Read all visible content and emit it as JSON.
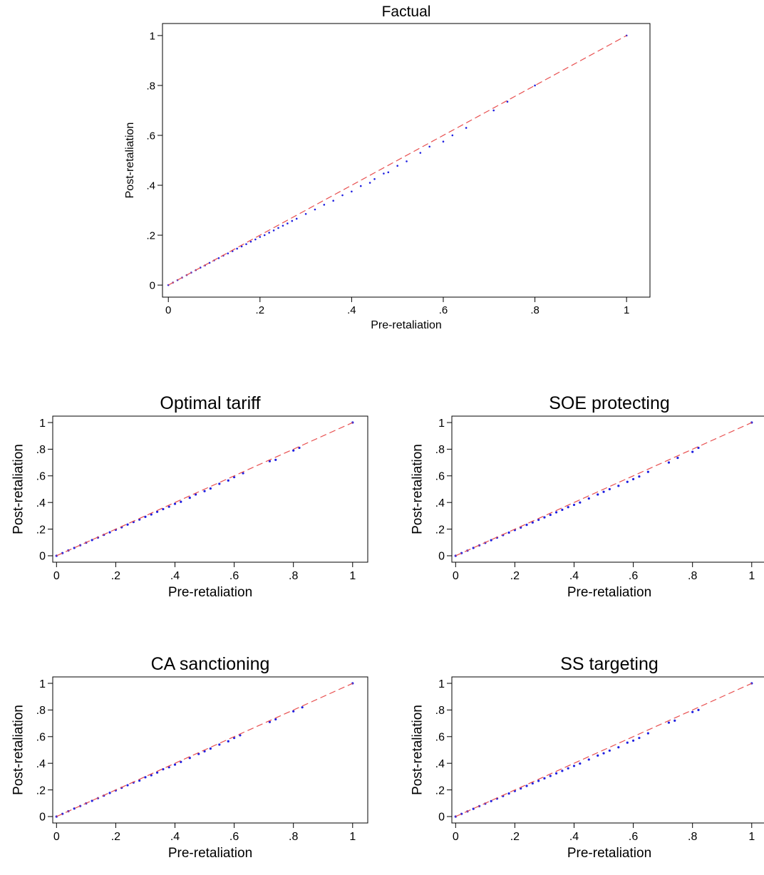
{
  "colors": {
    "points": "#1f1fe0",
    "reference_line": "#e85050",
    "axis": "#000000",
    "background": "#ffffff"
  },
  "chart_data": [
    {
      "type": "scatter",
      "title": "Factual",
      "xlabel": "Pre-retaliation",
      "ylabel": "Post-retaliation",
      "xlim": [
        0,
        1
      ],
      "ylim": [
        0,
        1
      ],
      "xticks": [
        "0",
        ".2",
        ".4",
        ".6",
        ".8",
        "1"
      ],
      "yticks": [
        "0",
        ".2",
        ".4",
        ".6",
        ".8",
        "1"
      ],
      "reference_line": {
        "x": [
          0,
          1
        ],
        "y": [
          0,
          1
        ],
        "style": "dashed"
      },
      "grid": false,
      "points": [
        [
          0,
          0
        ],
        [
          0.01,
          0.01
        ],
        [
          0.02,
          0.02
        ],
        [
          0.03,
          0.03
        ],
        [
          0.04,
          0.04
        ],
        [
          0.05,
          0.05
        ],
        [
          0.06,
          0.06
        ],
        [
          0.07,
          0.07
        ],
        [
          0.08,
          0.079
        ],
        [
          0.09,
          0.089
        ],
        [
          0.1,
          0.099
        ],
        [
          0.11,
          0.108
        ],
        [
          0.12,
          0.118
        ],
        [
          0.13,
          0.127
        ],
        [
          0.14,
          0.136
        ],
        [
          0.15,
          0.146
        ],
        [
          0.16,
          0.155
        ],
        [
          0.17,
          0.164
        ],
        [
          0.18,
          0.174
        ],
        [
          0.19,
          0.183
        ],
        [
          0.2,
          0.193
        ],
        [
          0.21,
          0.2
        ],
        [
          0.22,
          0.21
        ],
        [
          0.23,
          0.219
        ],
        [
          0.24,
          0.229
        ],
        [
          0.25,
          0.238
        ],
        [
          0.26,
          0.247
        ],
        [
          0.27,
          0.257
        ],
        [
          0.28,
          0.266
        ],
        [
          0.3,
          0.285
        ],
        [
          0.32,
          0.303
        ],
        [
          0.34,
          0.322
        ],
        [
          0.36,
          0.338
        ],
        [
          0.38,
          0.36
        ],
        [
          0.4,
          0.375
        ],
        [
          0.42,
          0.397
        ],
        [
          0.44,
          0.41
        ],
        [
          0.45,
          0.425
        ],
        [
          0.47,
          0.447
        ],
        [
          0.48,
          0.452
        ],
        [
          0.5,
          0.478
        ],
        [
          0.52,
          0.496
        ],
        [
          0.55,
          0.53
        ],
        [
          0.57,
          0.555
        ],
        [
          0.6,
          0.575
        ],
        [
          0.62,
          0.6
        ],
        [
          0.65,
          0.63
        ],
        [
          0.71,
          0.7
        ],
        [
          0.74,
          0.735
        ],
        [
          0.8,
          0.8
        ],
        [
          1,
          1
        ]
      ]
    },
    {
      "type": "scatter",
      "title": "Optimal tariff",
      "xlabel": "Pre-retaliation",
      "ylabel": "Post-retaliation",
      "xlim": [
        0,
        1
      ],
      "ylim": [
        0,
        1
      ],
      "xticks": [
        "0",
        ".2",
        ".4",
        ".6",
        ".8",
        "1"
      ],
      "yticks": [
        "0",
        ".2",
        ".4",
        ".6",
        ".8",
        "1"
      ],
      "reference_line": {
        "x": [
          0,
          1
        ],
        "y": [
          0,
          1
        ],
        "style": "dashed"
      },
      "grid": false,
      "points": [
        [
          0,
          0
        ],
        [
          0.02,
          0.02
        ],
        [
          0.04,
          0.04
        ],
        [
          0.06,
          0.059
        ],
        [
          0.08,
          0.079
        ],
        [
          0.1,
          0.098
        ],
        [
          0.12,
          0.118
        ],
        [
          0.14,
          0.137
        ],
        [
          0.16,
          0.157
        ],
        [
          0.18,
          0.176
        ],
        [
          0.2,
          0.195
        ],
        [
          0.22,
          0.214
        ],
        [
          0.24,
          0.234
        ],
        [
          0.26,
          0.253
        ],
        [
          0.28,
          0.272
        ],
        [
          0.3,
          0.292
        ],
        [
          0.32,
          0.31
        ],
        [
          0.34,
          0.33
        ],
        [
          0.36,
          0.35
        ],
        [
          0.38,
          0.368
        ],
        [
          0.4,
          0.39
        ],
        [
          0.42,
          0.405
        ],
        [
          0.45,
          0.435
        ],
        [
          0.47,
          0.46
        ],
        [
          0.5,
          0.485
        ],
        [
          0.52,
          0.505
        ],
        [
          0.55,
          0.54
        ],
        [
          0.58,
          0.565
        ],
        [
          0.6,
          0.59
        ],
        [
          0.63,
          0.62
        ],
        [
          0.72,
          0.71
        ],
        [
          0.74,
          0.72
        ],
        [
          0.8,
          0.79
        ],
        [
          0.82,
          0.81
        ],
        [
          1,
          1
        ]
      ]
    },
    {
      "type": "scatter",
      "title": "SOE protecting",
      "xlabel": "Pre-retaliation",
      "ylabel": "Post-retaliation",
      "xlim": [
        0,
        1
      ],
      "ylim": [
        0,
        1
      ],
      "xticks": [
        "0",
        ".2",
        ".4",
        ".6",
        ".8",
        "1"
      ],
      "yticks": [
        "0",
        ".2",
        ".4",
        ".6",
        ".8",
        "1"
      ],
      "reference_line": {
        "x": [
          0,
          1
        ],
        "y": [
          0,
          1
        ],
        "style": "dashed"
      },
      "grid": false,
      "points": [
        [
          0,
          0
        ],
        [
          0.02,
          0.02
        ],
        [
          0.04,
          0.039
        ],
        [
          0.06,
          0.059
        ],
        [
          0.08,
          0.078
        ],
        [
          0.1,
          0.097
        ],
        [
          0.12,
          0.117
        ],
        [
          0.14,
          0.136
        ],
        [
          0.16,
          0.155
        ],
        [
          0.18,
          0.174
        ],
        [
          0.2,
          0.193
        ],
        [
          0.22,
          0.212
        ],
        [
          0.24,
          0.232
        ],
        [
          0.26,
          0.25
        ],
        [
          0.28,
          0.27
        ],
        [
          0.3,
          0.288
        ],
        [
          0.32,
          0.307
        ],
        [
          0.34,
          0.326
        ],
        [
          0.36,
          0.345
        ],
        [
          0.38,
          0.365
        ],
        [
          0.4,
          0.382
        ],
        [
          0.42,
          0.4
        ],
        [
          0.45,
          0.43
        ],
        [
          0.48,
          0.46
        ],
        [
          0.5,
          0.48
        ],
        [
          0.52,
          0.5
        ],
        [
          0.55,
          0.525
        ],
        [
          0.58,
          0.555
        ],
        [
          0.6,
          0.575
        ],
        [
          0.62,
          0.595
        ],
        [
          0.65,
          0.63
        ],
        [
          0.72,
          0.7
        ],
        [
          0.75,
          0.735
        ],
        [
          0.8,
          0.78
        ],
        [
          0.82,
          0.81
        ],
        [
          1,
          1
        ]
      ]
    },
    {
      "type": "scatter",
      "title": "CA sanctioning",
      "xlabel": "Pre-retaliation",
      "ylabel": "Post-retaliation",
      "xlim": [
        0,
        1
      ],
      "ylim": [
        0,
        1
      ],
      "xticks": [
        "0",
        ".2",
        ".4",
        ".6",
        ".8",
        "1"
      ],
      "yticks": [
        "0",
        ".2",
        ".4",
        ".6",
        ".8",
        "1"
      ],
      "reference_line": {
        "x": [
          0,
          1
        ],
        "y": [
          0,
          1
        ],
        "style": "dashed"
      },
      "grid": false,
      "points": [
        [
          0,
          0
        ],
        [
          0.02,
          0.02
        ],
        [
          0.04,
          0.04
        ],
        [
          0.06,
          0.06
        ],
        [
          0.08,
          0.079
        ],
        [
          0.1,
          0.099
        ],
        [
          0.12,
          0.118
        ],
        [
          0.14,
          0.138
        ],
        [
          0.16,
          0.157
        ],
        [
          0.18,
          0.177
        ],
        [
          0.2,
          0.196
        ],
        [
          0.22,
          0.216
        ],
        [
          0.24,
          0.235
        ],
        [
          0.26,
          0.255
        ],
        [
          0.28,
          0.27
        ],
        [
          0.3,
          0.295
        ],
        [
          0.32,
          0.31
        ],
        [
          0.34,
          0.33
        ],
        [
          0.36,
          0.355
        ],
        [
          0.38,
          0.37
        ],
        [
          0.4,
          0.39
        ],
        [
          0.42,
          0.41
        ],
        [
          0.45,
          0.44
        ],
        [
          0.48,
          0.47
        ],
        [
          0.5,
          0.49
        ],
        [
          0.52,
          0.51
        ],
        [
          0.55,
          0.54
        ],
        [
          0.58,
          0.565
        ],
        [
          0.6,
          0.59
        ],
        [
          0.62,
          0.61
        ],
        [
          0.72,
          0.71
        ],
        [
          0.74,
          0.73
        ],
        [
          0.8,
          0.79
        ],
        [
          0.83,
          0.82
        ],
        [
          1,
          1
        ]
      ]
    },
    {
      "type": "scatter",
      "title": "SS targeting",
      "xlabel": "Pre-retaliation",
      "ylabel": "Post-retaliation",
      "xlim": [
        0,
        1
      ],
      "ylim": [
        0,
        1
      ],
      "xticks": [
        "0",
        ".2",
        ".4",
        ".6",
        ".8",
        "1"
      ],
      "yticks": [
        "0",
        ".2",
        ".4",
        ".6",
        ".8",
        "1"
      ],
      "reference_line": {
        "x": [
          0,
          1
        ],
        "y": [
          0,
          1
        ],
        "style": "dashed"
      },
      "grid": false,
      "points": [
        [
          0,
          0
        ],
        [
          0.02,
          0.02
        ],
        [
          0.04,
          0.039
        ],
        [
          0.06,
          0.058
        ],
        [
          0.08,
          0.078
        ],
        [
          0.1,
          0.097
        ],
        [
          0.12,
          0.116
        ],
        [
          0.14,
          0.135
        ],
        [
          0.16,
          0.154
        ],
        [
          0.18,
          0.173
        ],
        [
          0.2,
          0.192
        ],
        [
          0.22,
          0.211
        ],
        [
          0.24,
          0.23
        ],
        [
          0.26,
          0.249
        ],
        [
          0.28,
          0.268
        ],
        [
          0.3,
          0.287
        ],
        [
          0.32,
          0.305
        ],
        [
          0.34,
          0.324
        ],
        [
          0.36,
          0.343
        ],
        [
          0.38,
          0.362
        ],
        [
          0.4,
          0.38
        ],
        [
          0.42,
          0.398
        ],
        [
          0.45,
          0.428
        ],
        [
          0.48,
          0.458
        ],
        [
          0.5,
          0.475
        ],
        [
          0.52,
          0.495
        ],
        [
          0.55,
          0.52
        ],
        [
          0.58,
          0.555
        ],
        [
          0.6,
          0.57
        ],
        [
          0.62,
          0.59
        ],
        [
          0.65,
          0.625
        ],
        [
          0.72,
          0.705
        ],
        [
          0.74,
          0.72
        ],
        [
          0.8,
          0.785
        ],
        [
          0.82,
          0.8
        ],
        [
          1,
          1
        ]
      ]
    }
  ]
}
